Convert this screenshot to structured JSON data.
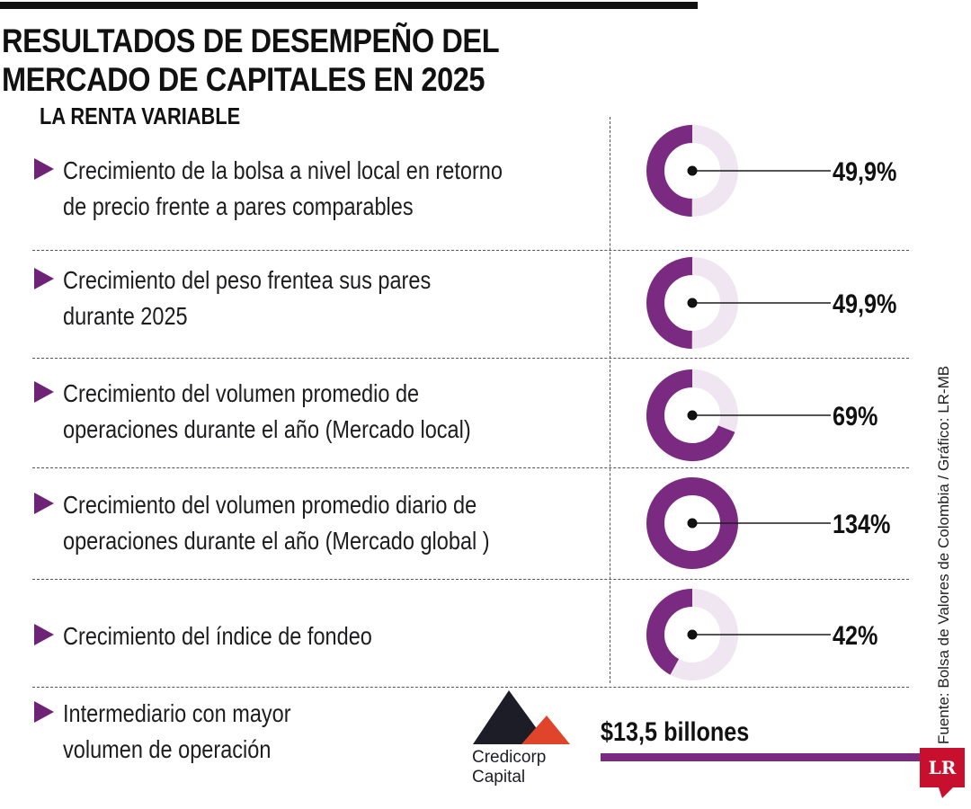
{
  "title": "RESULTADOS DE DESEMPEÑO DEL MERCADO DE CAPITALES EN 2025",
  "subtitle": "LA RENTA VARIABLE",
  "source": "Fuente: Bolsa de Valores de Colombia / Gráfico: LR-MB",
  "colors": {
    "accent": "#7b2a82",
    "track": "#efe6f1",
    "arrow": "#6f2377",
    "badge": "#c8102e"
  },
  "chart_data": {
    "type": "donut",
    "title": "RESULTADOS DE DESEMPEÑO DEL MERCADO DE CAPITALES EN 2025",
    "series": [
      {
        "label": "Crecimiento de la bolsa a nivel local en retorno de precio frente a pares comparables",
        "value": 49.9,
        "display": "49,9%"
      },
      {
        "label": "Crecimiento del peso frentea sus pares durante 2025",
        "value": 49.9,
        "display": "49,9%"
      },
      {
        "label": "Crecimiento del volumen promedio de operaciones durante el año (Mercado local)",
        "value": 69,
        "display": "69%"
      },
      {
        "label": "Crecimiento del volumen promedio diario de operaciones durante el año (Mercado global )",
        "value": 134,
        "display": "134%"
      },
      {
        "label": "Crecimiento del índice de fondeo",
        "value": 42,
        "display": "42%"
      }
    ]
  },
  "intermediary": {
    "label": "Intermediario con mayor volumen de operación",
    "company_line1": "Credicorp",
    "company_line2": "Capital",
    "value": "$13,5 billones"
  },
  "badge": "LR"
}
